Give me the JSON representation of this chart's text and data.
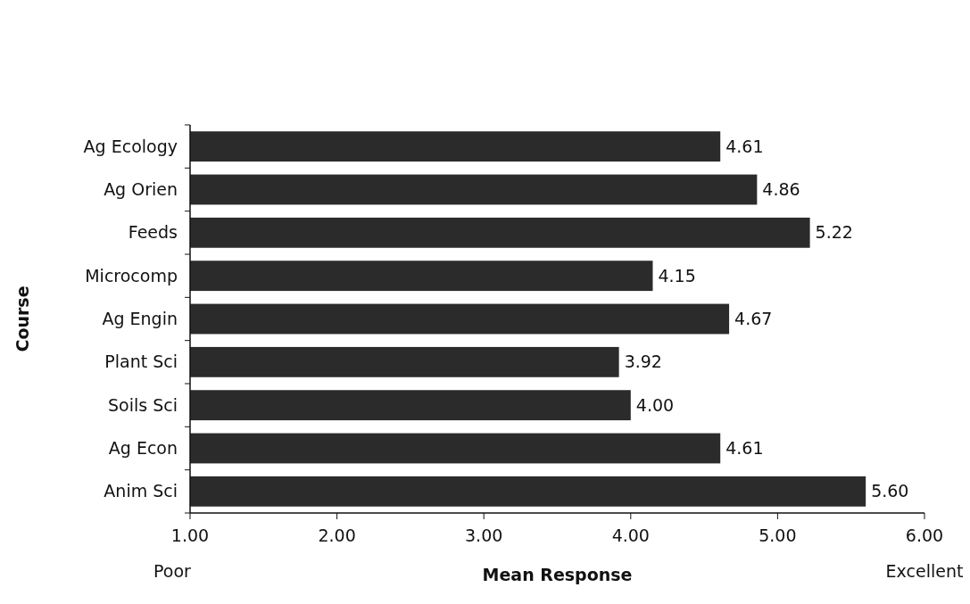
{
  "chart_data": {
    "type": "bar",
    "orientation": "horizontal",
    "xlabel": "Mean Response",
    "ylabel": "Course",
    "categories": [
      "Ag Ecology",
      "Ag Orien",
      "Feeds",
      "Microcomp",
      "Ag Engin",
      "Plant Sci",
      "Soils Sci",
      "Ag Econ",
      "Anim Sci"
    ],
    "values": [
      4.61,
      4.86,
      5.22,
      4.15,
      4.67,
      3.92,
      4.0,
      4.61,
      5.6
    ],
    "value_labels": [
      "4.61",
      "4.86",
      "5.22",
      "4.15",
      "4.67",
      "3.92",
      "4.00",
      "4.61",
      "5.60"
    ],
    "color": "#2b2b2b",
    "xlim": [
      1,
      6
    ],
    "xticks": [
      {
        "value": 1,
        "label": "1.00"
      },
      {
        "value": 2,
        "label": "2.00"
      },
      {
        "value": 3,
        "label": "3.00"
      },
      {
        "value": 4,
        "label": "4.00"
      },
      {
        "value": 5,
        "label": "5.00"
      },
      {
        "value": 6,
        "label": "6.00"
      }
    ],
    "annotations": [
      "Poor",
      "Excellent"
    ],
    "grid": false
  }
}
